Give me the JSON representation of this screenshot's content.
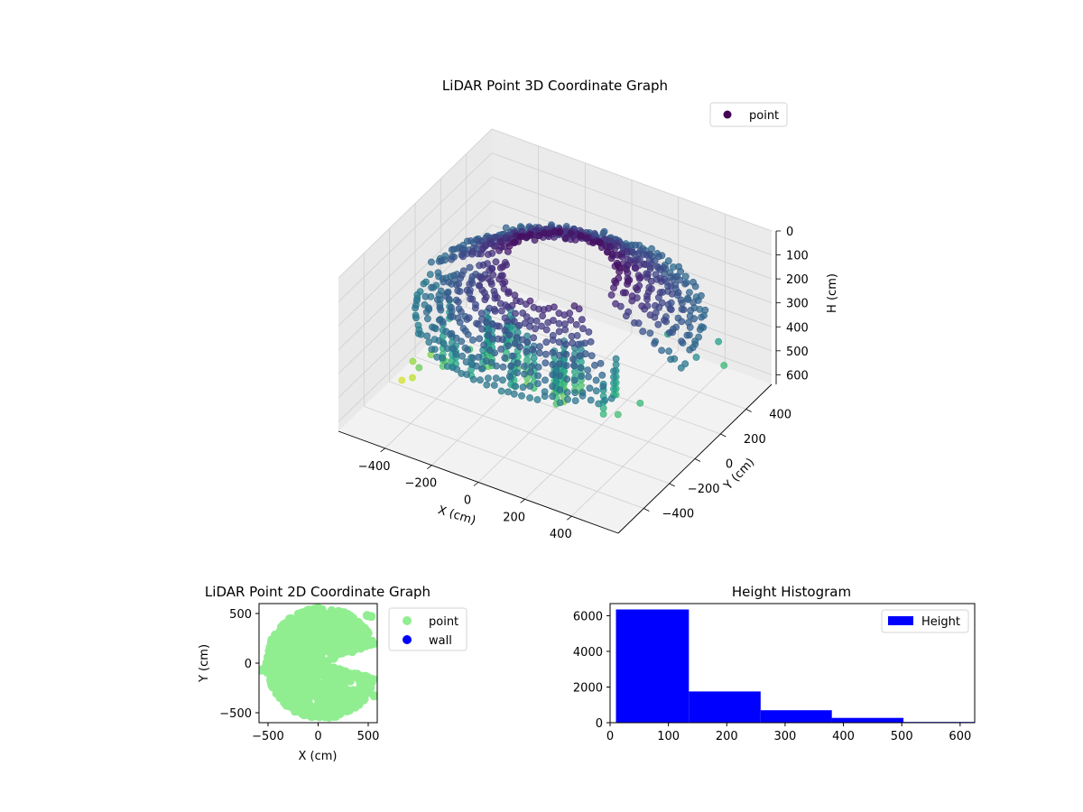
{
  "chart_data": [
    {
      "type": "scatter",
      "projection": "3d",
      "title": "LiDAR Point 3D Coordinate Graph",
      "xlabel": "X (cm)",
      "ylabel": "Y (cm)",
      "zlabel": "H (cm)",
      "xticks": [
        "−400",
        "−200",
        "0",
        "200",
        "400"
      ],
      "yticks": [
        "−400",
        "−200",
        "0",
        "200",
        "400"
      ],
      "zticks": [
        "0",
        "100",
        "200",
        "300",
        "400",
        "500",
        "600"
      ],
      "xlim": [
        -600,
        600
      ],
      "ylim": [
        -600,
        600
      ],
      "zlim": [
        0,
        640
      ],
      "zaxis_inverted": true,
      "colormap": "viridis",
      "legend": {
        "position": "top-right",
        "entries": [
          {
            "label": "point",
            "color": "#440154"
          }
        ]
      },
      "grid": true,
      "series": [
        {
          "name": "point",
          "note_shape": "ring cloud of LiDAR returns, radius ~200-550 cm, heights 0-620 cm"
        }
      ]
    },
    {
      "type": "scatter",
      "title": "LiDAR Point 2D Coordinate Graph",
      "xlabel": "X (cm)",
      "ylabel": "Y (cm)",
      "xticks": [
        "−500",
        "0",
        "500"
      ],
      "yticks": [
        "−500",
        "0",
        "500"
      ],
      "xlim": [
        -590,
        590
      ],
      "ylim": [
        -600,
        600
      ],
      "legend": {
        "position": "right-outside",
        "entries": [
          {
            "label": "point",
            "color": "#90ee90"
          },
          {
            "label": "wall",
            "color": "#0000ff"
          }
        ]
      },
      "grid": false
    },
    {
      "type": "bar",
      "title": "Height Histogram",
      "xlabel": "",
      "ylabel": "",
      "bins": [
        [
          10,
          135
        ],
        [
          135,
          258
        ],
        [
          258,
          380
        ],
        [
          380,
          503
        ],
        [
          503,
          625
        ]
      ],
      "values": [
        6350,
        1750,
        700,
        270,
        40
      ],
      "xticks": [
        "0",
        "100",
        "200",
        "300",
        "400",
        "500",
        "600"
      ],
      "yticks": [
        "0",
        "2000",
        "4000",
        "6000"
      ],
      "xlim": [
        0,
        625
      ],
      "ylim": [
        0,
        6680
      ],
      "color": "#0000ff",
      "legend": {
        "position": "top-right",
        "entries": [
          {
            "label": "Height",
            "color": "#0000ff"
          }
        ]
      },
      "grid": false
    }
  ]
}
